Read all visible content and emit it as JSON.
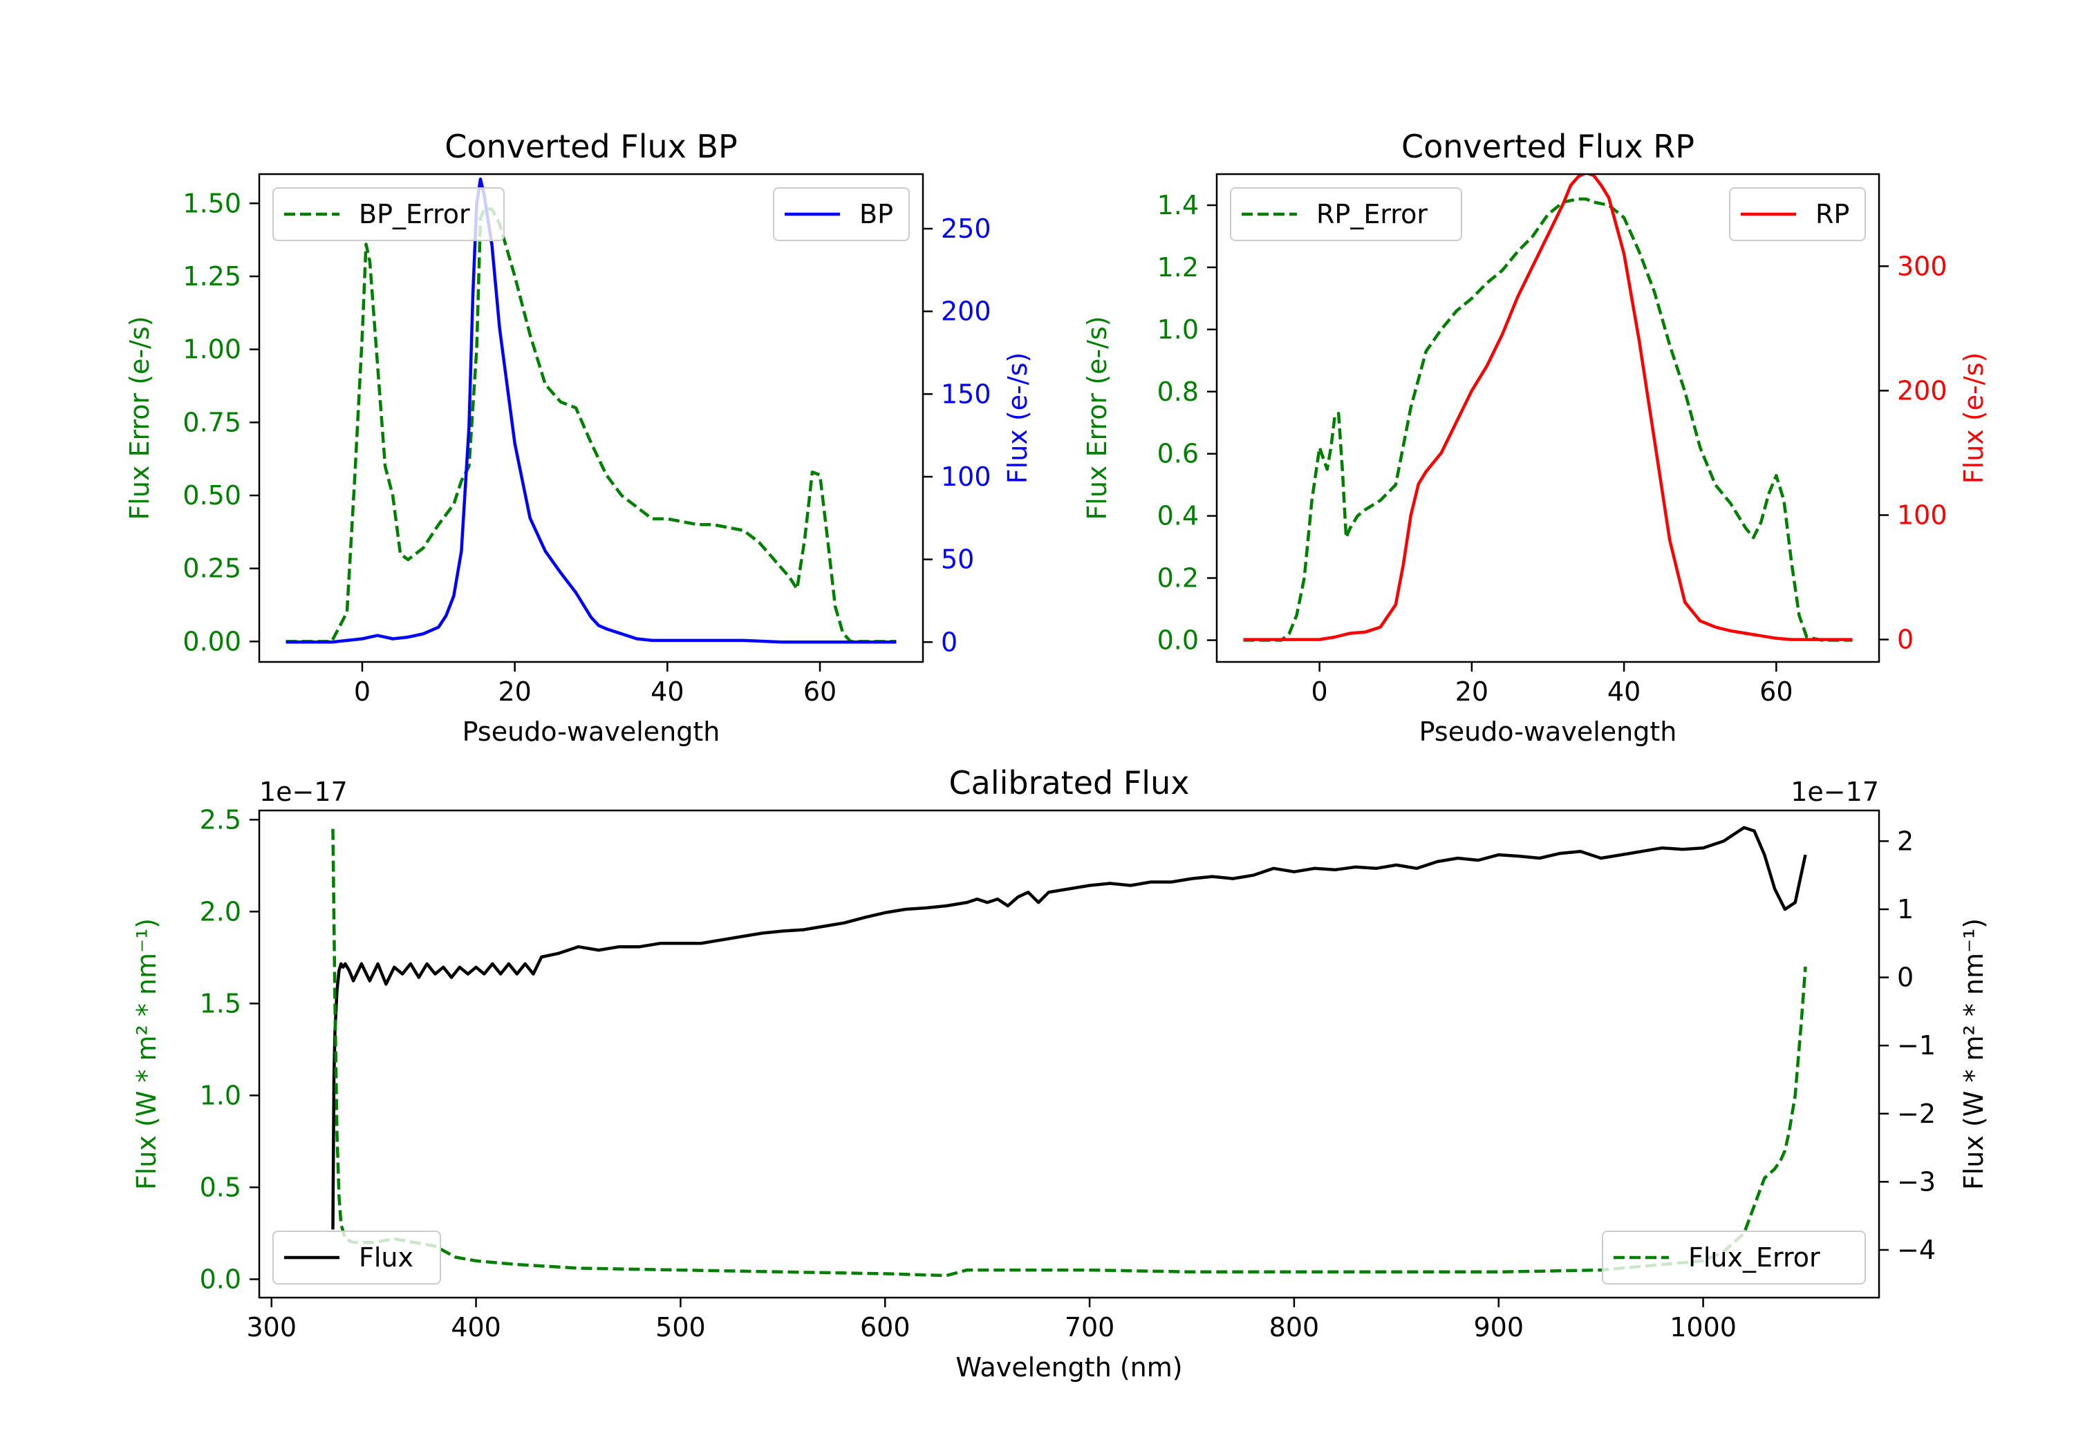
{
  "chart_data": [
    {
      "type": "line",
      "title": "Converted Flux BP",
      "xlabel": "Pseudo-wavelength",
      "ylabel_left": "Flux Error (e-/s)",
      "ylabel_right": "Flux (e-/s)",
      "xlim": [
        -13.5,
        73.5
      ],
      "xticks": [
        0,
        20,
        40,
        60
      ],
      "ylim_left": [
        -0.07,
        1.6
      ],
      "yticks_left": [
        "0.00",
        "0.25",
        "0.50",
        "0.75",
        "1.00",
        "1.25",
        "1.50"
      ],
      "ylim_right": [
        -12,
        283
      ],
      "yticks_right": [
        "0",
        "50",
        "100",
        "150",
        "200",
        "250"
      ],
      "colors": {
        "left": "#008000",
        "right": "#0000ff"
      },
      "legend_left": {
        "position": "upper left",
        "label": "BP_Error"
      },
      "legend_right": {
        "position": "upper right",
        "label": "BP"
      },
      "series": [
        {
          "name": "BP_Error",
          "axis": "left",
          "style": "dashed",
          "color": "#008000",
          "x": [
            -10,
            -4,
            -2,
            -1,
            0,
            0.5,
            1,
            2,
            3,
            4,
            5,
            6,
            8,
            10,
            12,
            13,
            14,
            15,
            15.5,
            16,
            17,
            18,
            20,
            22,
            24,
            26,
            28,
            30,
            32,
            34,
            36,
            38,
            40,
            42,
            44,
            46,
            48,
            50,
            52,
            54,
            56,
            57,
            58,
            59,
            60,
            61,
            62,
            63,
            64,
            66,
            68,
            70
          ],
          "y": [
            0,
            0,
            0.1,
            0.55,
            1.05,
            1.36,
            1.3,
            0.95,
            0.6,
            0.5,
            0.3,
            0.28,
            0.32,
            0.4,
            0.47,
            0.55,
            0.6,
            1.0,
            1.45,
            1.48,
            1.48,
            1.43,
            1.25,
            1.05,
            0.88,
            0.82,
            0.8,
            0.68,
            0.57,
            0.5,
            0.46,
            0.42,
            0.42,
            0.41,
            0.4,
            0.4,
            0.39,
            0.38,
            0.34,
            0.28,
            0.22,
            0.18,
            0.35,
            0.58,
            0.57,
            0.35,
            0.12,
            0.03,
            0,
            0,
            0,
            0
          ]
        },
        {
          "name": "BP",
          "axis": "right",
          "style": "solid",
          "color": "#0000ff",
          "x": [
            -10,
            -4,
            -2,
            0,
            1,
            2,
            3,
            4,
            6,
            8,
            10,
            11,
            12,
            13,
            14,
            14.5,
            15,
            15.5,
            16,
            17,
            18,
            20,
            22,
            24,
            26,
            28,
            30,
            31,
            32,
            34,
            36,
            38,
            40,
            45,
            50,
            55,
            60,
            65,
            70
          ],
          "y": [
            0,
            0,
            1,
            2,
            3,
            4,
            3,
            2,
            3,
            5,
            9,
            16,
            28,
            55,
            130,
            210,
            265,
            280,
            270,
            240,
            190,
            120,
            75,
            55,
            42,
            30,
            15,
            10,
            8,
            5,
            2,
            1,
            1,
            1,
            1,
            0,
            0,
            0,
            0
          ]
        }
      ]
    },
    {
      "type": "line",
      "title": "Converted Flux RP",
      "xlabel": "Pseudo-wavelength",
      "ylabel_left": "Flux Error (e-/s)",
      "ylabel_right": "Flux (e-/s)",
      "xlim": [
        -13.5,
        73.5
      ],
      "xticks": [
        0,
        20,
        40,
        60
      ],
      "ylim_left": [
        -0.07,
        1.5
      ],
      "yticks_left": [
        "0.0",
        "0.2",
        "0.4",
        "0.6",
        "0.8",
        "1.0",
        "1.2",
        "1.4"
      ],
      "ylim_right": [
        -18,
        374
      ],
      "yticks_right": [
        "0",
        "100",
        "200",
        "300"
      ],
      "colors": {
        "left": "#008000",
        "right": "#ff0000"
      },
      "legend_left": {
        "position": "upper left",
        "label": "RP_Error"
      },
      "legend_right": {
        "position": "upper right",
        "label": "RP"
      },
      "series": [
        {
          "name": "RP_Error",
          "axis": "left",
          "style": "dashed",
          "color": "#008000",
          "x": [
            -10,
            -5,
            -4,
            -3,
            -2,
            -1,
            0,
            1,
            1.5,
            2,
            2.5,
            3,
            3.5,
            4,
            5,
            6,
            8,
            10,
            12,
            14,
            16,
            18,
            20,
            22,
            24,
            26,
            28,
            30,
            32,
            34,
            35,
            36,
            38,
            40,
            42,
            44,
            46,
            48,
            50,
            52,
            54,
            56,
            57,
            58,
            59,
            60,
            61,
            62,
            63,
            64,
            66,
            70
          ],
          "y": [
            0,
            0,
            0.02,
            0.08,
            0.2,
            0.45,
            0.62,
            0.55,
            0.62,
            0.72,
            0.73,
            0.55,
            0.33,
            0.36,
            0.4,
            0.42,
            0.45,
            0.5,
            0.75,
            0.93,
            1.0,
            1.06,
            1.1,
            1.15,
            1.19,
            1.25,
            1.3,
            1.37,
            1.41,
            1.42,
            1.42,
            1.41,
            1.4,
            1.36,
            1.25,
            1.12,
            0.95,
            0.8,
            0.62,
            0.5,
            0.44,
            0.36,
            0.33,
            0.38,
            0.47,
            0.53,
            0.45,
            0.25,
            0.08,
            0.01,
            0,
            0
          ]
        },
        {
          "name": "RP",
          "axis": "right",
          "style": "solid",
          "color": "#ff0000",
          "x": [
            -10,
            -2,
            0,
            2,
            4,
            6,
            8,
            10,
            11,
            12,
            13,
            14,
            16,
            18,
            20,
            22,
            24,
            26,
            28,
            30,
            32,
            33,
            34,
            35,
            36,
            37,
            38,
            40,
            42,
            44,
            46,
            48,
            50,
            52,
            54,
            56,
            58,
            60,
            62,
            64,
            66,
            70
          ],
          "y": [
            0,
            0,
            0,
            2,
            5,
            6,
            10,
            28,
            60,
            100,
            125,
            135,
            150,
            175,
            200,
            220,
            245,
            275,
            300,
            325,
            350,
            365,
            372,
            375,
            373,
            365,
            355,
            310,
            240,
            160,
            80,
            30,
            15,
            10,
            7,
            5,
            3,
            1,
            0,
            0,
            0,
            0
          ]
        }
      ]
    },
    {
      "type": "line",
      "title": "Calibrated Flux",
      "xlabel": "Wavelength (nm)",
      "ylabel_left": "Flux (W * m² * nm⁻¹)",
      "ylabel_right": "Flux (W * m² * nm⁻¹)",
      "offset_left": "1e−17",
      "offset_right": "1e−17",
      "xlim": [
        294,
        1086
      ],
      "xticks": [
        300,
        400,
        500,
        600,
        700,
        800,
        900,
        1000
      ],
      "ylim_left": [
        -0.1,
        2.55
      ],
      "yticks_left": [
        "0.0",
        "0.5",
        "1.0",
        "1.5",
        "2.0",
        "2.5"
      ],
      "ylim_right": [
        -4.7,
        2.45
      ],
      "yticks_right": [
        "−4",
        "−3",
        "−2",
        "−1",
        "0",
        "1",
        "2"
      ],
      "colors": {
        "left": "#008000",
        "right": "#000000"
      },
      "legend_left": {
        "position": "lower left",
        "label": "Flux"
      },
      "legend_right": {
        "position": "lower right",
        "label": "Flux_Error"
      },
      "series": [
        {
          "name": "Flux",
          "axis": "right",
          "style": "solid",
          "color": "#000000",
          "x": [
            330,
            330.5,
            331,
            332,
            333,
            334,
            335,
            336,
            338,
            340,
            344,
            348,
            352,
            356,
            360,
            364,
            368,
            372,
            376,
            380,
            384,
            388,
            392,
            396,
            400,
            404,
            408,
            412,
            416,
            420,
            424,
            428,
            432,
            440,
            450,
            460,
            470,
            480,
            490,
            500,
            510,
            520,
            530,
            540,
            550,
            560,
            570,
            580,
            590,
            600,
            610,
            620,
            630,
            640,
            645,
            650,
            655,
            660,
            665,
            670,
            675,
            680,
            690,
            700,
            710,
            720,
            730,
            740,
            750,
            760,
            770,
            780,
            790,
            800,
            810,
            820,
            830,
            840,
            850,
            860,
            870,
            880,
            890,
            900,
            910,
            920,
            930,
            940,
            950,
            960,
            970,
            980,
            990,
            1000,
            1005,
            1010,
            1015,
            1020,
            1025,
            1030,
            1035,
            1040,
            1045,
            1050
          ],
          "y": [
            -3.7,
            -1.5,
            -0.8,
            -0.2,
            0.1,
            0.2,
            0.15,
            0.2,
            0.1,
            -0.05,
            0.2,
            -0.05,
            0.2,
            -0.1,
            0.15,
            0.05,
            0.2,
            0.0,
            0.2,
            0.05,
            0.15,
            0.0,
            0.15,
            0.05,
            0.15,
            0.05,
            0.2,
            0.05,
            0.2,
            0.05,
            0.2,
            0.05,
            0.3,
            0.35,
            0.45,
            0.4,
            0.45,
            0.45,
            0.5,
            0.5,
            0.5,
            0.55,
            0.6,
            0.65,
            0.68,
            0.7,
            0.75,
            0.8,
            0.88,
            0.95,
            1.0,
            1.02,
            1.05,
            1.1,
            1.15,
            1.1,
            1.15,
            1.05,
            1.18,
            1.25,
            1.1,
            1.25,
            1.3,
            1.35,
            1.38,
            1.35,
            1.4,
            1.4,
            1.45,
            1.48,
            1.45,
            1.5,
            1.6,
            1.55,
            1.6,
            1.58,
            1.62,
            1.6,
            1.65,
            1.6,
            1.7,
            1.75,
            1.72,
            1.8,
            1.78,
            1.75,
            1.82,
            1.85,
            1.75,
            1.8,
            1.85,
            1.9,
            1.88,
            1.9,
            1.95,
            2.0,
            2.1,
            2.2,
            2.15,
            1.8,
            1.3,
            1.0,
            1.1,
            1.8
          ]
        },
        {
          "name": "Flux_Error",
          "axis": "left",
          "style": "dashed",
          "color": "#008000",
          "x": [
            330,
            331,
            332,
            333,
            334,
            336,
            340,
            345,
            350,
            360,
            370,
            380,
            385,
            390,
            400,
            420,
            450,
            500,
            550,
            600,
            630,
            640,
            650,
            700,
            750,
            800,
            850,
            900,
            950,
            1000,
            1010,
            1020,
            1025,
            1030,
            1035,
            1038,
            1040,
            1042,
            1045,
            1048,
            1050
          ],
          "y": [
            2.45,
            1.5,
            0.8,
            0.45,
            0.3,
            0.22,
            0.2,
            0.2,
            0.2,
            0.22,
            0.2,
            0.18,
            0.15,
            0.12,
            0.1,
            0.08,
            0.06,
            0.05,
            0.04,
            0.03,
            0.02,
            0.05,
            0.05,
            0.05,
            0.04,
            0.04,
            0.04,
            0.04,
            0.05,
            0.1,
            0.15,
            0.25,
            0.4,
            0.55,
            0.6,
            0.65,
            0.7,
            0.8,
            1.0,
            1.4,
            1.7
          ]
        }
      ]
    }
  ]
}
